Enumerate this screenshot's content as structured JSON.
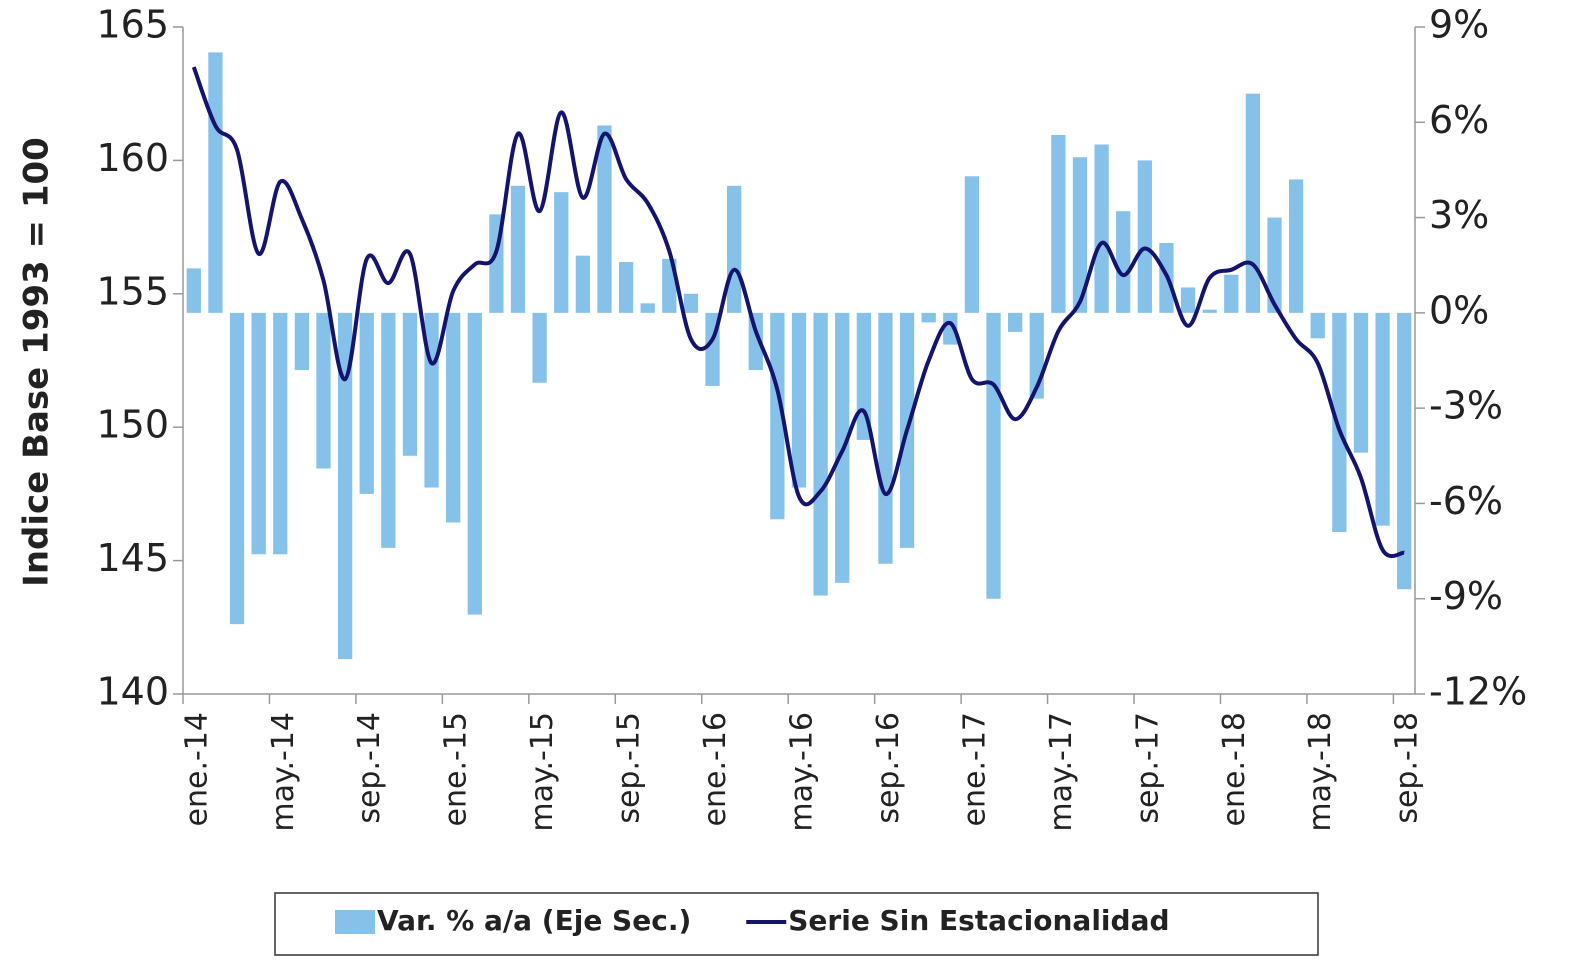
{
  "chart_data": {
    "type": "bar_line",
    "y_label": "Indice Base 1993 = 100",
    "categories": [
      "ene.-14",
      null,
      null,
      null,
      "may.-14",
      null,
      null,
      null,
      "sep.-14",
      null,
      null,
      null,
      "ene.-15",
      null,
      null,
      null,
      "may.-15",
      null,
      null,
      null,
      "sep.-15",
      null,
      null,
      null,
      "ene.-16",
      null,
      null,
      null,
      "may.-16",
      null,
      null,
      null,
      "sep.-16",
      null,
      null,
      null,
      "ene.-17",
      null,
      null,
      null,
      "may.-17",
      null,
      null,
      null,
      "sep.-17",
      null,
      null,
      null,
      "ene.-18",
      null,
      null,
      null,
      "may.-18",
      null,
      null,
      null,
      "sep.-18"
    ],
    "series": [
      {
        "name": "Var. % a/a (Eje Sec.)",
        "type": "bar",
        "axis": "y2",
        "color": "#85c1e9",
        "values": [
          1.4,
          8.2,
          -9.8,
          -7.6,
          -7.6,
          -1.8,
          -4.9,
          -10.9,
          -5.7,
          -7.4,
          -4.5,
          -5.5,
          -6.6,
          -9.5,
          3.1,
          4.0,
          -2.2,
          3.8,
          1.8,
          5.9,
          1.6,
          0.3,
          1.7,
          0.6,
          -2.3,
          4.0,
          -1.8,
          -6.5,
          -5.5,
          -8.9,
          -8.5,
          -4.0,
          -7.9,
          -7.4,
          -0.3,
          -1.0,
          4.3,
          -9.0,
          -0.6,
          -2.7,
          5.6,
          4.9,
          5.3,
          3.2,
          4.8,
          2.2,
          0.8,
          0.1,
          1.2,
          6.9,
          3.0,
          4.2,
          -0.8,
          -6.9,
          -4.4,
          -6.7,
          -8.7
        ]
      },
      {
        "name": "Serie Sin Estacionalidad",
        "type": "line",
        "color": "#14146e",
        "values": [
          163.5,
          161.3,
          160.4,
          156.5,
          159.2,
          157.8,
          155.5,
          151.8,
          156.3,
          155.4,
          156.5,
          152.4,
          155.1,
          156.1,
          156.6,
          161.0,
          158.1,
          161.8,
          158.6,
          161.0,
          159.3,
          158.4,
          156.6,
          153.3,
          153.3,
          155.9,
          153.6,
          151.4,
          147.4,
          147.6,
          149.1,
          150.6,
          147.5,
          149.9,
          152.5,
          153.9,
          151.8,
          151.6,
          150.3,
          151.5,
          153.6,
          154.7,
          156.9,
          155.7,
          156.7,
          155.7,
          153.8,
          155.6,
          155.9,
          156.1,
          154.6,
          153.3,
          152.4,
          149.9,
          148.1,
          145.4,
          145.3
        ]
      }
    ],
    "ylim": [
      140,
      165
    ],
    "yticks": [
      140,
      145,
      150,
      155,
      160,
      165
    ],
    "y2lim": [
      -12,
      9
    ],
    "y2ticks": [
      {
        "value": -12,
        "label": "-12%"
      },
      {
        "value": -9,
        "label": "-9%"
      },
      {
        "value": -6,
        "label": "-6%"
      },
      {
        "value": -3,
        "label": "-3%"
      },
      {
        "value": 0,
        "label": "0%"
      },
      {
        "value": 3,
        "label": "3%"
      },
      {
        "value": 6,
        "label": "6%"
      },
      {
        "value": 9,
        "label": "9%"
      }
    ],
    "grid": false,
    "legend": "bottom"
  }
}
